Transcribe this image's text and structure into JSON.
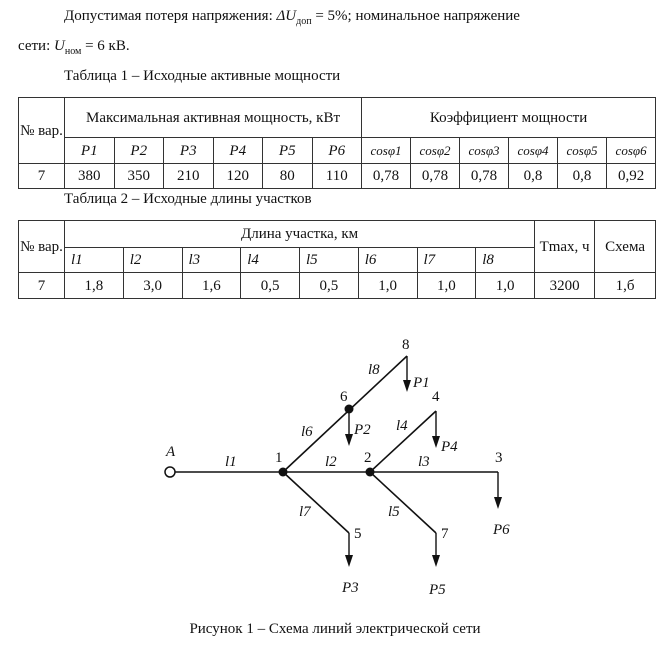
{
  "intro": {
    "line1_prefix": "Допустимая  потеря  напряжения: ",
    "du_symbol": "ΔU",
    "du_sub": "доп",
    "du_value": " = 5%;  номинальное  напряжение",
    "line2_prefix": "сети: ",
    "u_symbol": "U",
    "u_sub": "ном",
    "u_value": " = 6 кВ."
  },
  "table1": {
    "caption": "Таблица 1 – Исходные активные мощности",
    "variant_header": "№ вар.",
    "power_header": "Максимальная активная мощность, кВт",
    "cos_header": "Коэффициент мощности",
    "power_cols": [
      "P1",
      "P2",
      "P3",
      "P4",
      "P5",
      "P6"
    ],
    "cos_cols": [
      "cosφ1",
      "cosφ2",
      "cosφ3",
      "cosφ4",
      "cosφ5",
      "cosφ6"
    ],
    "row": {
      "variant": "7",
      "powers": [
        "380",
        "350",
        "210",
        "120",
        "80",
        "110"
      ],
      "cos": [
        "0,78",
        "0,78",
        "0,78",
        "0,8",
        "0,8",
        "0,92"
      ]
    }
  },
  "table2": {
    "caption": "Таблица 2 – Исходные длины участков",
    "variant_header": "№ вар.",
    "length_header": "Длина участка, км",
    "length_cols": [
      "l1",
      "l2",
      "l3",
      "l4",
      "l5",
      "l6",
      "l7",
      "l8"
    ],
    "tmax_header": "Tmax, ч",
    "scheme_header": "Схема",
    "row": {
      "variant": "7",
      "lengths": [
        "1,8",
        "3,0",
        "1,6",
        "0,5",
        "0,5",
        "1,0",
        "1,0",
        "1,0"
      ],
      "tmax": "3200",
      "scheme": "1,б"
    }
  },
  "figure": {
    "caption": "Рисунок 1 – Схема линий электрической сети",
    "nodes": {
      "A": "A",
      "n1": "1",
      "n2": "2",
      "n3": "3",
      "n4": "4",
      "n5": "5",
      "n6": "6",
      "n7": "7",
      "n8": "8"
    },
    "lines": {
      "l1": "l1",
      "l2": "l2",
      "l3": "l3",
      "l4": "l4",
      "l5": "l5",
      "l6": "l6",
      "l7": "l7",
      "l8": "l8"
    },
    "loads": {
      "P1": "P1",
      "P2": "P2",
      "P3": "P3",
      "P4": "P4",
      "P5": "P5",
      "P6": "P6"
    }
  }
}
